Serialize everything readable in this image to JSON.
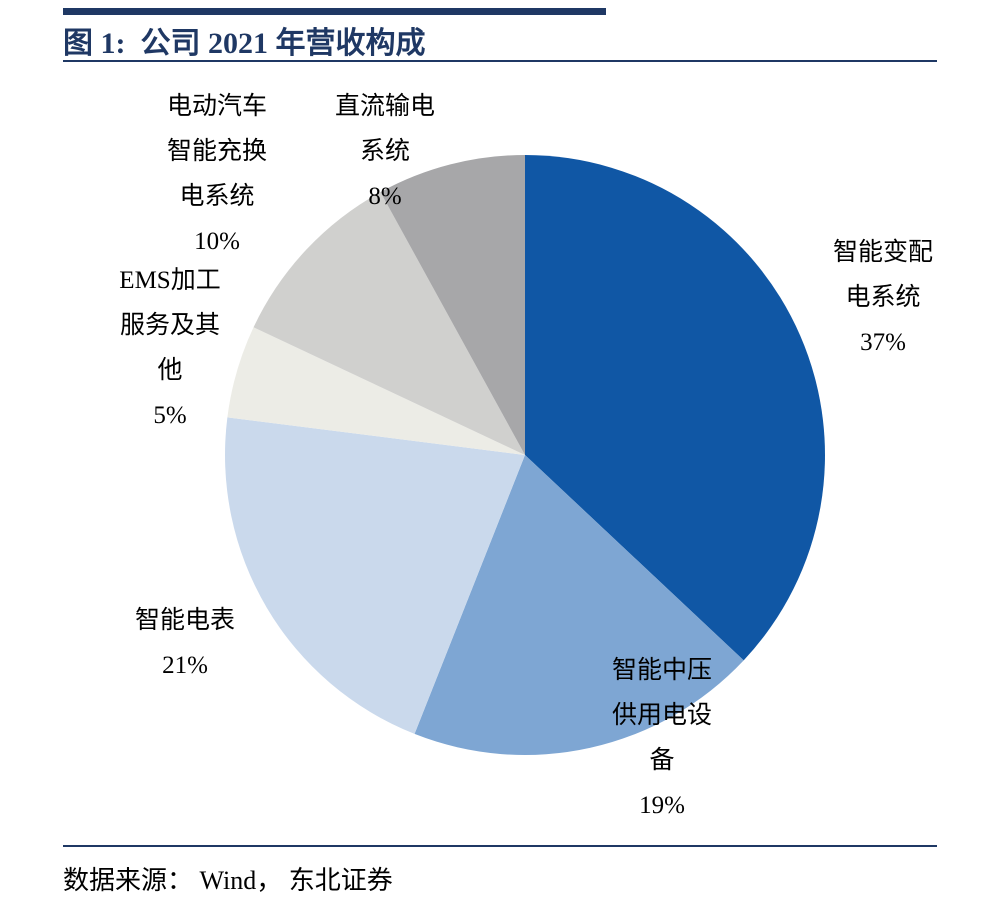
{
  "figure": {
    "title": "图 1:  公司 2021 年营收构成",
    "source": "数据来源： Wind， 东北证券"
  },
  "colors": {
    "accent": "#1F3864",
    "text": "#000000",
    "background": "#FFFFFF"
  },
  "chart_data": {
    "type": "pie",
    "title": "公司 2021 年营收构成",
    "start_angle_deg": 0,
    "direction": "clockwise",
    "legend_position": "none",
    "slices": [
      {
        "label": "智能变配电系统",
        "value": 37,
        "unit": "%",
        "color": "#1057A5",
        "label_display": "智能变配\n电系统\n37%"
      },
      {
        "label": "智能中压供用电设备",
        "value": 19,
        "unit": "%",
        "color": "#7EA6D3",
        "label_display": "智能中压\n供用电设\n备\n19%"
      },
      {
        "label": "智能电表",
        "value": 21,
        "unit": "%",
        "color": "#CAD9EC",
        "label_display": "智能电表\n21%"
      },
      {
        "label": "EMS加工服务及其他",
        "value": 5,
        "unit": "%",
        "color": "#ECECE6",
        "label_display": "EMS加工\n服务及其\n他\n5%"
      },
      {
        "label": "电动汽车智能充换电系统",
        "value": 10,
        "unit": "%",
        "color": "#D0D0CE",
        "label_display": "电动汽车\n智能充换\n电系统\n10%"
      },
      {
        "label": "直流输电系统",
        "value": 8,
        "unit": "%",
        "color": "#A7A7A9",
        "label_display": "直流输电\n系统\n8%"
      }
    ]
  }
}
